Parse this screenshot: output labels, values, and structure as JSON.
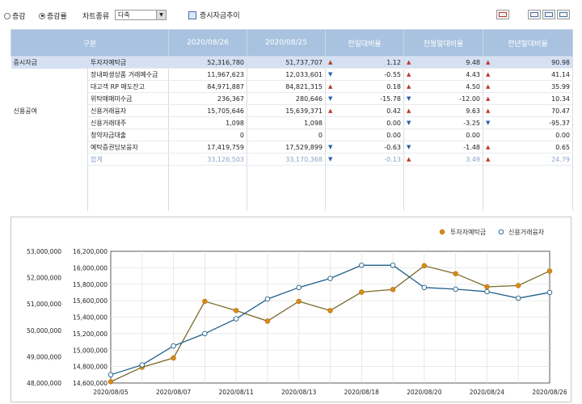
{
  "toolbar": {
    "radio_change": "증감",
    "radio_rate": "증감률",
    "chart_type_label": "차트종류",
    "chart_type_value": "다축",
    "trend_button": "증시자금추이"
  },
  "table": {
    "headers": [
      "구분",
      "2020/08/26",
      "2020/08/25",
      "전일대비율",
      "전월말대비율",
      "전년말대비율"
    ],
    "rows": [
      {
        "cat": "증시자금",
        "name": "투자자예탁금",
        "v1": "52,316,780",
        "v2": "51,737,707",
        "d1": "1.12",
        "a1": "up",
        "d2": "9.48",
        "a2": "up",
        "d3": "90.98",
        "a3": "up"
      },
      {
        "cat": "",
        "name": "장내파생상품 거래예수금",
        "v1": "11,967,623",
        "v2": "12,033,601",
        "d1": "-0.55",
        "a1": "dn",
        "d2": "4.43",
        "a2": "up",
        "d3": "41.14",
        "a3": "up"
      },
      {
        "cat": "",
        "name": "대고객 RP 매도잔고",
        "v1": "84,971,887",
        "v2": "84,821,315",
        "d1": "0.18",
        "a1": "up",
        "d2": "4.50",
        "a2": "up",
        "d3": "35.99",
        "a3": "up"
      },
      {
        "cat": "",
        "name": "위탁매매미수금",
        "v1": "236,367",
        "v2": "280,646",
        "d1": "-15.78",
        "a1": "dn",
        "d2": "-12.00",
        "a2": "dn",
        "d3": "10.34",
        "a3": "up"
      },
      {
        "cat": "신용공여",
        "name": "신용거래융자",
        "v1": "15,705,646",
        "v2": "15,639,371",
        "d1": "0.42",
        "a1": "up",
        "d2": "9.63",
        "a2": "up",
        "d3": "70.47",
        "a3": "up"
      },
      {
        "cat": "",
        "name": "신용거래대주",
        "v1": "1,098",
        "v2": "1,098",
        "d1": "0.00",
        "a1": "",
        "d2": "-3.25",
        "a2": "dn",
        "d3": "-95.37",
        "a3": "dn"
      },
      {
        "cat": "",
        "name": "청약자금대출",
        "v1": "0",
        "v2": "0",
        "d1": "0.00",
        "a1": "",
        "d2": "0.00",
        "a2": "",
        "d3": "0.00",
        "a3": ""
      },
      {
        "cat": "",
        "name": "예탁증권담보융자",
        "v1": "17,419,759",
        "v2": "17,529,899",
        "d1": "-0.63",
        "a1": "dn",
        "d2": "-1.48",
        "a2": "dn",
        "d3": "0.65",
        "a3": "up"
      },
      {
        "cat": "",
        "name": "합계",
        "v1": "33,126,503",
        "v2": "33,170,368",
        "d1": "-0.13",
        "a1": "dn",
        "d2": "3.49",
        "a2": "up",
        "d3": "24.79",
        "a3": "up"
      }
    ]
  },
  "chart_data": {
    "type": "line",
    "legend_placement": "top-right",
    "grid": true,
    "x": [
      "2020/08/05",
      "2020/08/06",
      "2020/08/07",
      "2020/08/10",
      "2020/08/11",
      "2020/08/12",
      "2020/08/13",
      "2020/08/14",
      "2020/08/18",
      "2020/08/19",
      "2020/08/20",
      "2020/08/21",
      "2020/08/24",
      "2020/08/25",
      "2020/08/26"
    ],
    "x_tick_labels": [
      "2020/08/05",
      "2020/08/07",
      "2020/08/11",
      "2020/08/13",
      "2020/08/18",
      "2020/08/20",
      "2020/08/24",
      "2020/08/26"
    ],
    "y_left": {
      "ylim": [
        48000000,
        53000000
      ],
      "ticks": [
        "48,000,000",
        "49,000,000",
        "50,000,000",
        "51,000,000",
        "52,000,000",
        "53,000,000"
      ]
    },
    "y_right": {
      "ylim": [
        14600000,
        16200000
      ],
      "ticks": [
        "14,600,000",
        "14,800,000",
        "15,000,000",
        "15,200,000",
        "15,400,000",
        "15,600,000",
        "15,800,000",
        "16,000,000",
        "16,200,000"
      ]
    },
    "series": [
      {
        "name": "투자자예탁금",
        "axis": "left",
        "color": "#d98a1c",
        "line_color": "#7a6a2a",
        "values": [
          48050000,
          48600000,
          48950000,
          51100000,
          50750000,
          50350000,
          51100000,
          50750000,
          51450000,
          51550000,
          52450000,
          52150000,
          51650000,
          51700000,
          52250000
        ]
      },
      {
        "name": "신용거래융자",
        "axis": "right",
        "color": "#ffffff",
        "line_color": "#1f5f8b",
        "values": [
          14700000,
          14820000,
          15050000,
          15200000,
          15380000,
          15620000,
          15760000,
          15870000,
          16030000,
          16030000,
          15760000,
          15740000,
          15710000,
          15630000,
          15700000
        ]
      }
    ]
  }
}
